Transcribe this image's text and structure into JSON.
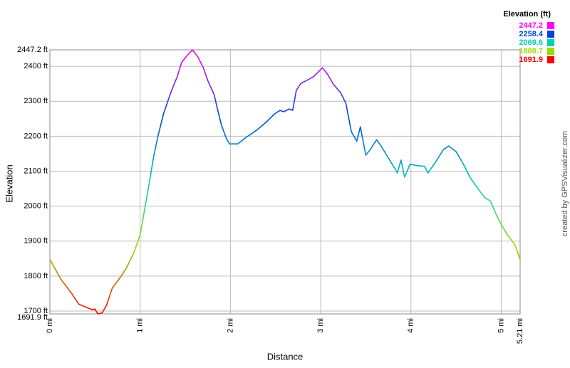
{
  "chart_data": {
    "type": "line",
    "xlabel": "Distance",
    "ylabel": "Elevation",
    "credit": "created by GPSVisualizer.com",
    "legend_title": "Elevation (ft)",
    "color_scale": [
      {
        "value": 2447.2,
        "color": "#ff00ff"
      },
      {
        "value": 2258.4,
        "color": "#0044dd"
      },
      {
        "value": 2069.6,
        "color": "#00d0b0"
      },
      {
        "value": 1880.7,
        "color": "#99dd00"
      },
      {
        "value": 1691.9,
        "color": "#ff0000"
      }
    ],
    "xlim": [
      0,
      5.21
    ],
    "xticks": [
      {
        "value": 0,
        "label": "0 mi"
      },
      {
        "value": 1,
        "label": "1 mi"
      },
      {
        "value": 2,
        "label": "2 mi"
      },
      {
        "value": 3,
        "label": "3 mi"
      },
      {
        "value": 4,
        "label": "4 mi"
      },
      {
        "value": 5,
        "label": "5 mi"
      },
      {
        "value": 5.21,
        "label": "5.21 mi"
      }
    ],
    "ylim": [
      1691.9,
      2447.2
    ],
    "yticks": [
      {
        "value": 1691.9,
        "label": "1691.9 ft"
      },
      {
        "value": 1700,
        "label": "1700 ft"
      },
      {
        "value": 1800,
        "label": "1800 ft"
      },
      {
        "value": 1900,
        "label": "1900 ft"
      },
      {
        "value": 2000,
        "label": "2000 ft"
      },
      {
        "value": 2100,
        "label": "2100 ft"
      },
      {
        "value": 2200,
        "label": "2200 ft"
      },
      {
        "value": 2300,
        "label": "2300 ft"
      },
      {
        "value": 2400,
        "label": "2400 ft"
      },
      {
        "value": 2447.2,
        "label": "2447.2 ft"
      }
    ],
    "grid": true,
    "series": [
      {
        "name": "Elevation",
        "x": [
          0,
          0.12,
          0.24,
          0.32,
          0.43,
          0.47,
          0.5,
          0.53,
          0.58,
          0.63,
          0.69,
          0.73,
          0.79,
          0.85,
          0.93,
          1.0,
          1.03,
          1.07,
          1.11,
          1.15,
          1.2,
          1.26,
          1.34,
          1.41,
          1.46,
          1.52,
          1.58,
          1.64,
          1.7,
          1.75,
          1.82,
          1.86,
          1.9,
          1.95,
          1.99,
          2.08,
          2.17,
          2.29,
          2.39,
          2.49,
          2.55,
          2.59,
          2.65,
          2.69,
          2.73,
          2.78,
          2.84,
          2.92,
          3.02,
          3.08,
          3.14,
          3.22,
          3.28,
          3.34,
          3.4,
          3.44,
          3.5,
          3.55,
          3.62,
          3.67,
          3.75,
          3.81,
          3.85,
          3.89,
          3.93,
          3.99,
          4.07,
          4.15,
          4.19,
          4.27,
          4.36,
          4.42,
          4.5,
          4.58,
          4.66,
          4.76,
          4.82,
          4.88,
          4.94,
          5.0,
          5.07,
          5.15,
          5.21
        ],
        "values": [
          1848,
          1792,
          1751,
          1720,
          1708,
          1704,
          1706,
          1692,
          1695,
          1718,
          1765,
          1779,
          1800,
          1824,
          1867,
          1918,
          1962,
          2020,
          2080,
          2142,
          2203,
          2265,
          2325,
          2370,
          2411,
          2431,
          2447,
          2427,
          2396,
          2359,
          2319,
          2274,
          2233,
          2197,
          2178,
          2178,
          2196,
          2217,
          2239,
          2264,
          2274,
          2270,
          2278,
          2274,
          2331,
          2351,
          2359,
          2370,
          2396,
          2376,
          2349,
          2325,
          2294,
          2213,
          2186,
          2227,
          2146,
          2162,
          2190,
          2172,
          2138,
          2113,
          2095,
          2132,
          2083,
          2120,
          2116,
          2114,
          2095,
          2125,
          2162,
          2172,
          2156,
          2121,
          2080,
          2044,
          2024,
          2015,
          1979,
          1948,
          1918,
          1891,
          1848
        ]
      }
    ]
  }
}
